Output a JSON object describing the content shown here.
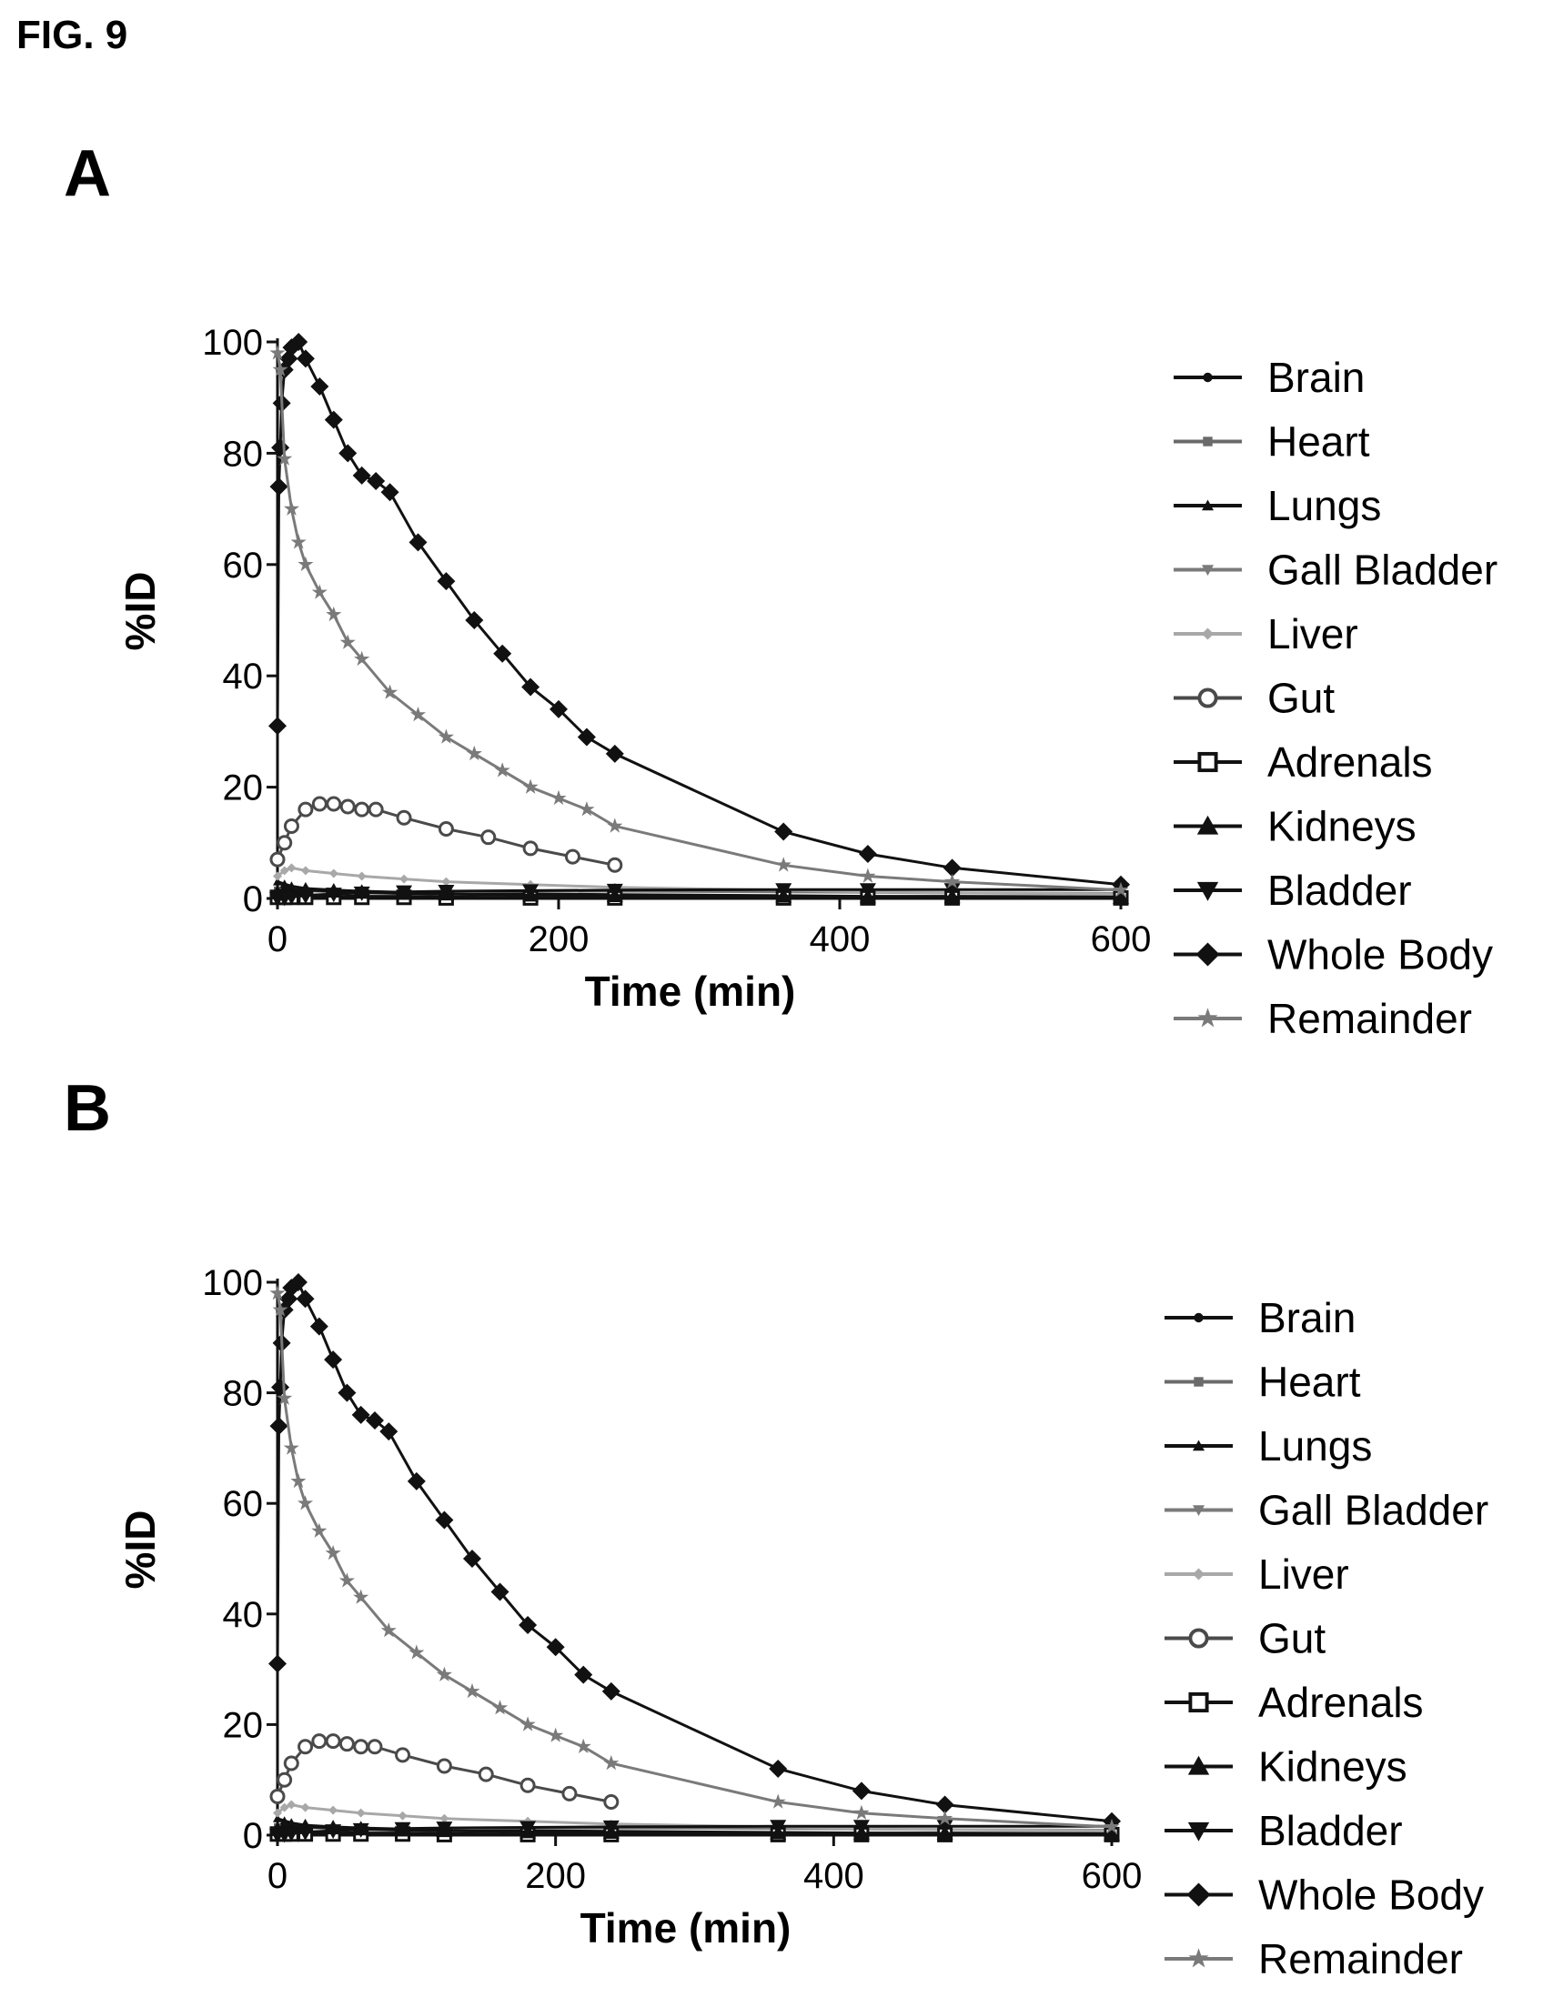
{
  "figure_label": "FIG. 9",
  "colors": {
    "black": "#111111",
    "dark_gray": "#4a4a4a",
    "mid_gray": "#7a7a7a",
    "light_gray": "#a8a8a8"
  },
  "chart_data": [
    {
      "panel": "A",
      "type": "line",
      "xlabel": "Time (min)",
      "ylabel": "%ID",
      "xlim": [
        0,
        600
      ],
      "ylim": [
        0,
        100
      ],
      "xticks": [
        0,
        200,
        400,
        600
      ],
      "yticks": [
        0,
        20,
        40,
        60,
        80,
        100
      ],
      "grid": false,
      "legend_position": "right",
      "series": [
        {
          "name": "Brain",
          "marker": "circle-small",
          "color": "#111111",
          "x": [
            0,
            5,
            10,
            20,
            40,
            60,
            90,
            120,
            180,
            240,
            360,
            420,
            480,
            600
          ],
          "y": [
            0.5,
            0.6,
            0.6,
            0.5,
            0.5,
            0.4,
            0.4,
            0.3,
            0.3,
            0.3,
            0.2,
            0.2,
            0.2,
            0.1
          ]
        },
        {
          "name": "Heart",
          "marker": "square-small",
          "color": "#6a6a6a",
          "x": [
            0,
            5,
            10,
            20,
            40,
            60,
            90,
            120,
            180,
            240,
            360,
            420,
            480,
            600
          ],
          "y": [
            1.5,
            1.8,
            1.6,
            1.4,
            1.2,
            1.0,
            0.9,
            0.8,
            0.6,
            0.5,
            0.4,
            0.3,
            0.3,
            0.2
          ]
        },
        {
          "name": "Lungs",
          "marker": "triangle-up-small",
          "color": "#111111",
          "x": [
            0,
            5,
            10,
            20,
            40,
            60,
            90,
            120,
            180,
            240,
            360,
            420,
            480,
            600
          ],
          "y": [
            3,
            2.6,
            2.2,
            1.8,
            1.5,
            1.3,
            1.1,
            1.0,
            0.8,
            0.7,
            0.5,
            0.4,
            0.4,
            0.3
          ]
        },
        {
          "name": "Gall Bladder",
          "marker": "triangle-down-small",
          "color": "#7a7a7a",
          "x": [
            0,
            5,
            10,
            20,
            40,
            60,
            90,
            120,
            180,
            240,
            360,
            420,
            480,
            600
          ],
          "y": [
            0.2,
            0.3,
            0.4,
            0.6,
            0.8,
            1.0,
            1.1,
            1.2,
            1.3,
            1.3,
            1.2,
            1.1,
            1.0,
            0.9
          ]
        },
        {
          "name": "Liver",
          "marker": "diamond-small",
          "color": "#a8a8a8",
          "x": [
            0,
            5,
            10,
            20,
            40,
            60,
            90,
            120,
            180,
            240,
            360,
            420,
            480,
            600
          ],
          "y": [
            4,
            5,
            5.5,
            5,
            4.5,
            4,
            3.5,
            3,
            2.5,
            2,
            1.5,
            1.2,
            1.0,
            0.8
          ]
        },
        {
          "name": "Gut",
          "marker": "circle-open",
          "color": "#4a4a4a",
          "x": [
            0,
            5,
            10,
            20,
            30,
            40,
            50,
            60,
            70,
            90,
            120,
            150,
            180,
            210,
            240
          ],
          "y": [
            7,
            10,
            13,
            16,
            17,
            17,
            16.5,
            16,
            16,
            14.5,
            12.5,
            11,
            9,
            7.5,
            6
          ]
        },
        {
          "name": "Adrenals",
          "marker": "square-open",
          "color": "#111111",
          "x": [
            0,
            5,
            10,
            20,
            40,
            60,
            90,
            120,
            180,
            240,
            360,
            420,
            480,
            600
          ],
          "y": [
            0.2,
            0.2,
            0.2,
            0.2,
            0.2,
            0.2,
            0.2,
            0.1,
            0.1,
            0.1,
            0.1,
            0.1,
            0.1,
            0.1
          ]
        },
        {
          "name": "Kidneys",
          "marker": "triangle-up",
          "color": "#111111",
          "x": [
            0,
            5,
            10,
            20,
            40,
            60,
            90,
            120,
            180,
            240,
            360,
            420,
            480,
            600
          ],
          "y": [
            1.0,
            1.5,
            1.6,
            1.5,
            1.3,
            1.1,
            0.9,
            0.8,
            0.6,
            0.5,
            0.4,
            0.3,
            0.3,
            0.2
          ]
        },
        {
          "name": "Bladder",
          "marker": "triangle-down",
          "color": "#111111",
          "x": [
            0,
            5,
            10,
            20,
            40,
            60,
            90,
            120,
            180,
            240,
            360,
            420,
            480,
            600
          ],
          "y": [
            0,
            0.1,
            0.3,
            0.5,
            0.8,
            1.0,
            1.2,
            1.3,
            1.4,
            1.5,
            1.6,
            1.6,
            1.6,
            1.6
          ]
        },
        {
          "name": "Whole Body",
          "marker": "diamond",
          "color": "#111111",
          "x": [
            0,
            1,
            2,
            3,
            5,
            8,
            10,
            15,
            20,
            30,
            40,
            50,
            60,
            70,
            80,
            100,
            120,
            140,
            160,
            180,
            200,
            220,
            240,
            360,
            420,
            480,
            600
          ],
          "y": [
            31,
            74,
            81,
            89,
            95,
            97,
            99,
            100,
            97,
            92,
            86,
            80,
            76,
            75,
            73,
            64,
            57,
            50,
            44,
            38,
            34,
            29,
            26,
            12,
            8,
            5.5,
            2.5
          ]
        },
        {
          "name": "Remainder",
          "marker": "star",
          "color": "#7a7a7a",
          "x": [
            0,
            2,
            5,
            10,
            15,
            20,
            30,
            40,
            50,
            60,
            80,
            100,
            120,
            140,
            160,
            180,
            200,
            220,
            240,
            360,
            420,
            480,
            600
          ],
          "y": [
            98,
            95,
            79,
            70,
            64,
            60,
            55,
            51,
            46,
            43,
            37,
            33,
            29,
            26,
            23,
            20,
            18,
            16,
            13,
            6,
            4,
            3,
            1.5
          ]
        }
      ]
    },
    {
      "panel": "B",
      "type": "line",
      "xlabel": "Time (min)",
      "ylabel": "%ID",
      "xlim": [
        0,
        600
      ],
      "ylim": [
        0,
        100
      ],
      "xticks": [
        0,
        200,
        400,
        600
      ],
      "yticks": [
        0,
        20,
        40,
        60,
        80,
        100
      ],
      "grid": false,
      "legend_position": "right",
      "series": [
        {
          "name": "Brain",
          "marker": "circle-small",
          "color": "#111111",
          "x": [
            0,
            5,
            10,
            20,
            40,
            60,
            90,
            120,
            180,
            240,
            360,
            420,
            480,
            600
          ],
          "y": [
            0.5,
            0.6,
            0.6,
            0.5,
            0.5,
            0.4,
            0.4,
            0.3,
            0.3,
            0.3,
            0.2,
            0.2,
            0.2,
            0.1
          ]
        },
        {
          "name": "Heart",
          "marker": "square-small",
          "color": "#6a6a6a",
          "x": [
            0,
            5,
            10,
            20,
            40,
            60,
            90,
            120,
            180,
            240,
            360,
            420,
            480,
            600
          ],
          "y": [
            1.5,
            1.8,
            1.6,
            1.4,
            1.2,
            1.0,
            0.9,
            0.8,
            0.6,
            0.5,
            0.4,
            0.3,
            0.3,
            0.2
          ]
        },
        {
          "name": "Lungs",
          "marker": "triangle-up-small",
          "color": "#111111",
          "x": [
            0,
            5,
            10,
            20,
            40,
            60,
            90,
            120,
            180,
            240,
            360,
            420,
            480,
            600
          ],
          "y": [
            3,
            2.6,
            2.2,
            1.8,
            1.5,
            1.3,
            1.1,
            1.0,
            0.8,
            0.7,
            0.5,
            0.4,
            0.4,
            0.3
          ]
        },
        {
          "name": "Gall Bladder",
          "marker": "triangle-down-small",
          "color": "#7a7a7a",
          "x": [
            0,
            5,
            10,
            20,
            40,
            60,
            90,
            120,
            180,
            240,
            360,
            420,
            480,
            600
          ],
          "y": [
            0.2,
            0.3,
            0.4,
            0.6,
            0.8,
            1.0,
            1.1,
            1.2,
            1.3,
            1.3,
            1.2,
            1.1,
            1.0,
            0.9
          ]
        },
        {
          "name": "Liver",
          "marker": "diamond-small",
          "color": "#a8a8a8",
          "x": [
            0,
            5,
            10,
            20,
            40,
            60,
            90,
            120,
            180,
            240,
            360,
            420,
            480,
            600
          ],
          "y": [
            4,
            5,
            5.5,
            5,
            4.5,
            4,
            3.5,
            3,
            2.5,
            2,
            1.5,
            1.2,
            1.0,
            0.8
          ]
        },
        {
          "name": "Gut",
          "marker": "circle-open",
          "color": "#4a4a4a",
          "x": [
            0,
            5,
            10,
            20,
            30,
            40,
            50,
            60,
            70,
            90,
            120,
            150,
            180,
            210,
            240
          ],
          "y": [
            7,
            10,
            13,
            16,
            17,
            17,
            16.5,
            16,
            16,
            14.5,
            12.5,
            11,
            9,
            7.5,
            6
          ]
        },
        {
          "name": "Adrenals",
          "marker": "square-open",
          "color": "#111111",
          "x": [
            0,
            5,
            10,
            20,
            40,
            60,
            90,
            120,
            180,
            240,
            360,
            420,
            480,
            600
          ],
          "y": [
            0.2,
            0.2,
            0.2,
            0.2,
            0.2,
            0.2,
            0.2,
            0.1,
            0.1,
            0.1,
            0.1,
            0.1,
            0.1,
            0.1
          ]
        },
        {
          "name": "Kidneys",
          "marker": "triangle-up",
          "color": "#111111",
          "x": [
            0,
            5,
            10,
            20,
            40,
            60,
            90,
            120,
            180,
            240,
            360,
            420,
            480,
            600
          ],
          "y": [
            1.0,
            1.5,
            1.6,
            1.5,
            1.3,
            1.1,
            0.9,
            0.8,
            0.6,
            0.5,
            0.4,
            0.3,
            0.3,
            0.2
          ]
        },
        {
          "name": "Bladder",
          "marker": "triangle-down",
          "color": "#111111",
          "x": [
            0,
            5,
            10,
            20,
            40,
            60,
            90,
            120,
            180,
            240,
            360,
            420,
            480,
            600
          ],
          "y": [
            0,
            0.1,
            0.3,
            0.5,
            0.8,
            1.0,
            1.2,
            1.3,
            1.4,
            1.5,
            1.6,
            1.6,
            1.6,
            1.6
          ]
        },
        {
          "name": "Whole Body",
          "marker": "diamond",
          "color": "#111111",
          "x": [
            0,
            1,
            2,
            3,
            5,
            8,
            10,
            15,
            20,
            30,
            40,
            50,
            60,
            70,
            80,
            100,
            120,
            140,
            160,
            180,
            200,
            220,
            240,
            360,
            420,
            480,
            600
          ],
          "y": [
            31,
            74,
            81,
            89,
            95,
            97,
            99,
            100,
            97,
            92,
            86,
            80,
            76,
            75,
            73,
            64,
            57,
            50,
            44,
            38,
            34,
            29,
            26,
            12,
            8,
            5.5,
            2.5
          ]
        },
        {
          "name": "Remainder",
          "marker": "star",
          "color": "#7a7a7a",
          "x": [
            0,
            2,
            5,
            10,
            15,
            20,
            30,
            40,
            50,
            60,
            80,
            100,
            120,
            140,
            160,
            180,
            200,
            220,
            240,
            360,
            420,
            480,
            600
          ],
          "y": [
            98,
            95,
            79,
            70,
            64,
            60,
            55,
            51,
            46,
            43,
            37,
            33,
            29,
            26,
            23,
            20,
            18,
            16,
            13,
            6,
            4,
            3,
            1.5
          ]
        }
      ]
    }
  ]
}
